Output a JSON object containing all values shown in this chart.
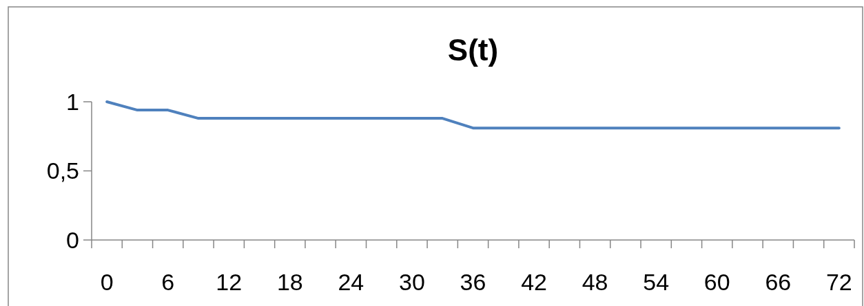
{
  "chart_data": {
    "type": "line",
    "title": "S(t)",
    "categories": [
      "0",
      null,
      "6",
      null,
      "12",
      null,
      "18",
      null,
      "24",
      null,
      "30",
      null,
      "36",
      null,
      "42",
      null,
      "48",
      null,
      "54",
      null,
      "60",
      null,
      "66",
      null,
      "72"
    ],
    "series": [
      {
        "color": "#4f81bd",
        "values": [
          1,
          0.94,
          0.94,
          0.88,
          0.88,
          0.88,
          0.88,
          0.88,
          0.88,
          0.88,
          0.88,
          0.88,
          0.81,
          0.81,
          0.81,
          0.81,
          0.81,
          0.81,
          0.81,
          0.81,
          0.81,
          0.81,
          0.81,
          0.81,
          0.81
        ]
      }
    ],
    "ylim": [
      0,
      1
    ],
    "yticks": [
      0,
      {
        "value": 0.5,
        "label": "0,5"
      },
      1
    ],
    "grid": false,
    "marker": "none",
    "line_style": "solid"
  }
}
